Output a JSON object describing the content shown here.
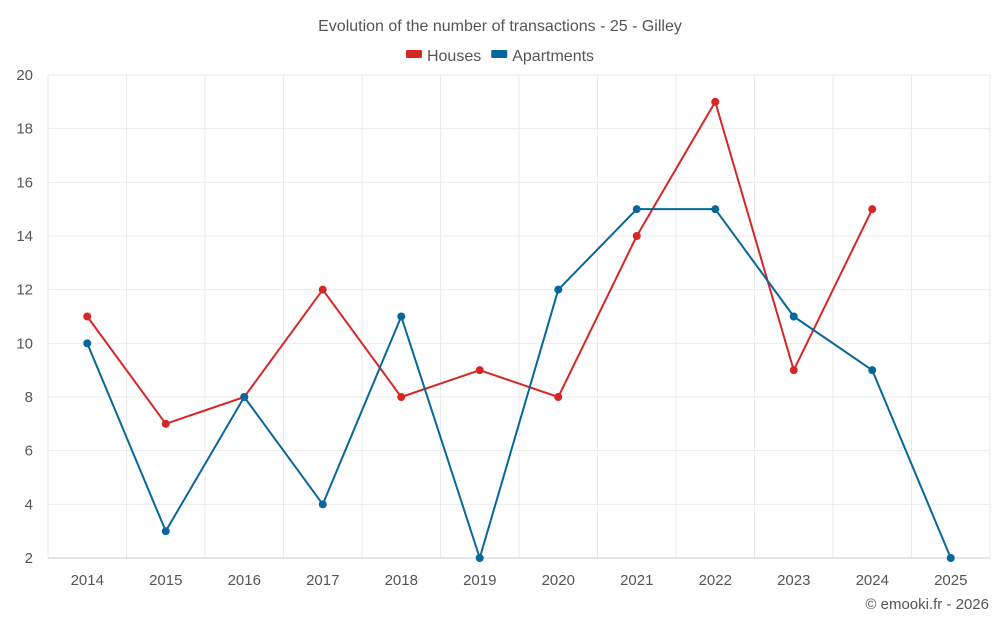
{
  "chart_data": {
    "type": "line",
    "title": "Evolution of the number of transactions - 25 - Gilley",
    "categories": [
      "2014",
      "2015",
      "2016",
      "2017",
      "2018",
      "2019",
      "2020",
      "2021",
      "2022",
      "2023",
      "2024",
      "2025"
    ],
    "series": [
      {
        "name": "Houses",
        "color": "#d62728",
        "values": [
          11,
          7,
          8,
          12,
          8,
          9,
          8,
          14,
          19,
          9,
          15,
          null
        ]
      },
      {
        "name": "Apartments",
        "color": "#07679b",
        "values": [
          10,
          3,
          8,
          4,
          11,
          2,
          12,
          15,
          15,
          11,
          9,
          2
        ]
      }
    ],
    "ylim": [
      2,
      20
    ],
    "yticks": [
      2,
      4,
      6,
      8,
      10,
      12,
      14,
      16,
      18,
      20
    ],
    "grid": true,
    "legend": "top-center",
    "xlabel": "",
    "ylabel": ""
  },
  "credit": "© emooki.fr - 2026"
}
